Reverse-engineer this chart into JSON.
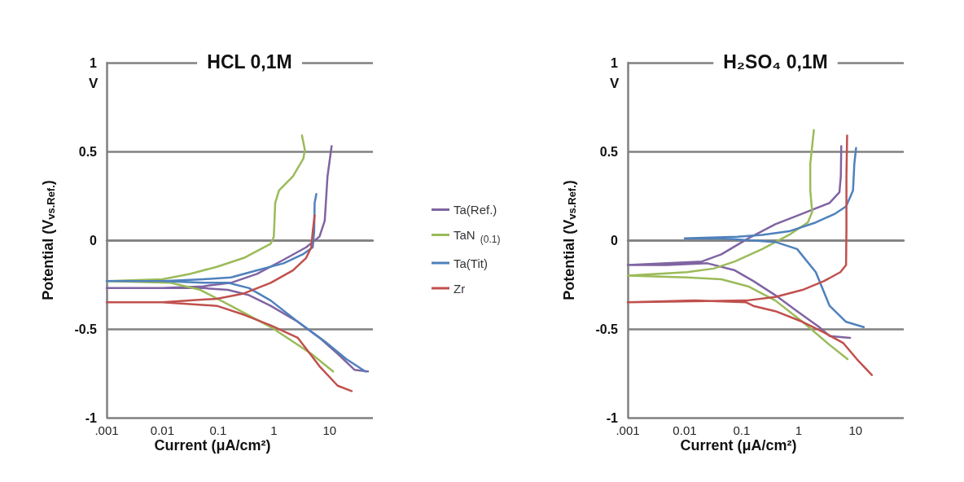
{
  "chart_data": [
    {
      "type": "line",
      "title": "HCL 0,1M",
      "xlabel": "Current (μA/cm²)",
      "ylabel": "Potential (V$_{vs.Ref.}$)",
      "annotations": [
        "V"
      ],
      "log": "x",
      "grid": "y",
      "legend": "right",
      "xlim": [
        0.001,
        60
      ],
      "xticks": [
        {
          "value": 0.001,
          "label": ".001"
        },
        0.01,
        0.1,
        1,
        10
      ],
      "ylim": [
        -1,
        1
      ],
      "yticks": [
        -1,
        -0.5,
        0,
        0.5,
        1
      ],
      "series": [
        {
          "name": "Ta(Ref.)",
          "color": "#8064a2",
          "x": [
            49,
            28,
            14,
            6.6,
            2.7,
            0.88,
            0.36,
            0.15,
            0.054,
            0.01,
            0.001,
            0.01,
            0.054,
            0.17,
            0.5,
            1.5,
            3.8,
            6.6,
            8.2,
            9.2,
            10.9
          ],
          "values": [
            -0.74,
            -0.73,
            -0.64,
            -0.55,
            -0.46,
            -0.37,
            -0.31,
            -0.28,
            -0.27,
            -0.27,
            -0.27,
            -0.27,
            -0.26,
            -0.24,
            -0.19,
            -0.11,
            -0.04,
            0.02,
            0.11,
            0.36,
            0.53
          ]
        },
        {
          "name": "TaN $_{(0.1)}$",
          "color": "#9bbb59",
          "x": [
            11.6,
            4.7,
            0.89,
            0.17,
            0.048,
            0.014,
            0.001,
            0.01,
            0.031,
            0.095,
            0.29,
            0.88,
            1.0,
            1.06,
            1.24,
            2.2,
            3.4,
            3.6,
            3.2
          ],
          "values": [
            -0.74,
            -0.64,
            -0.49,
            -0.37,
            -0.28,
            -0.24,
            -0.23,
            -0.22,
            -0.19,
            -0.15,
            -0.1,
            -0.02,
            0.02,
            0.21,
            0.28,
            0.36,
            0.46,
            0.51,
            0.59
          ]
        },
        {
          "name": "Ta(Tit)",
          "color": "#4f81bd",
          "x": [
            44,
            20,
            8.2,
            2.7,
            0.88,
            0.36,
            0.15,
            0.054,
            0.01,
            0.001,
            0.01,
            0.054,
            0.17,
            0.5,
            1.5,
            3.3,
            5.0,
            5.3,
            5.4,
            5.8
          ],
          "values": [
            -0.74,
            -0.67,
            -0.57,
            -0.46,
            -0.34,
            -0.27,
            -0.24,
            -0.24,
            -0.23,
            -0.23,
            -0.23,
            -0.22,
            -0.21,
            -0.17,
            -0.13,
            -0.08,
            -0.04,
            0.05,
            0.21,
            0.26
          ]
        },
        {
          "name": "Zr",
          "color": "#c0504d",
          "x": [
            25,
            14,
            6.6,
            2.7,
            0.88,
            0.29,
            0.095,
            0.031,
            0.01,
            0.001,
            0.01,
            0.031,
            0.095,
            0.29,
            0.88,
            2.2,
            3.8,
            4.7,
            5.0,
            5.4
          ],
          "values": [
            -0.85,
            -0.82,
            -0.71,
            -0.55,
            -0.48,
            -0.42,
            -0.37,
            -0.36,
            -0.35,
            -0.35,
            -0.35,
            -0.34,
            -0.33,
            -0.3,
            -0.24,
            -0.17,
            -0.1,
            -0.04,
            0.05,
            0.14
          ]
        }
      ]
    },
    {
      "type": "line",
      "title": "H₂SO₄ 0,1M",
      "xlabel": "Current (μA/cm²)",
      "ylabel": "Potential (V$_{vs.Ref.}$)",
      "annotations": [
        "V"
      ],
      "log": "x",
      "grid": "y",
      "xlim": [
        0.001,
        70
      ],
      "xticks": [
        {
          "value": 0.001,
          "label": ".001"
        },
        0.01,
        0.1,
        1,
        10
      ],
      "ylim": [
        -1,
        1
      ],
      "yticks": [
        -1,
        -0.5,
        0,
        0.5,
        1
      ],
      "series": [
        {
          "color": "#8064a2",
          "x": [
            8.0,
            3.5,
            2.3,
            0.94,
            0.39,
            0.16,
            0.076,
            0.025,
            0.0049,
            0.001,
            0.0049,
            0.02,
            0.044,
            0.13,
            0.39,
            1.17,
            3.5,
            5.2,
            5.5,
            5.6
          ],
          "values": [
            -0.55,
            -0.54,
            -0.49,
            -0.4,
            -0.31,
            -0.23,
            -0.17,
            -0.13,
            -0.14,
            -0.14,
            -0.13,
            -0.12,
            -0.08,
            0.01,
            0.09,
            0.15,
            0.21,
            0.27,
            0.36,
            0.53
          ]
        },
        {
          "color": "#9bbb59",
          "x": [
            7.2,
            3.5,
            1.17,
            0.39,
            0.13,
            0.044,
            0.011,
            0.001,
            0.011,
            0.032,
            0.076,
            0.23,
            0.68,
            1.45,
            1.73,
            1.6,
            1.6,
            1.85
          ],
          "values": [
            -0.67,
            -0.59,
            -0.46,
            -0.34,
            -0.26,
            -0.22,
            -0.21,
            -0.2,
            -0.18,
            -0.16,
            -0.12,
            -0.05,
            0.03,
            0.1,
            0.16,
            0.28,
            0.43,
            0.62
          ]
        },
        {
          "color": "#4f81bd",
          "x": [
            13.9,
            6.8,
            3.5,
            2.0,
            0.94,
            0.39,
            0.13,
            0.044,
            0.01,
            0.085,
            0.23,
            0.68,
            2.0,
            4.4,
            6.8,
            9.0,
            9.5,
            10.2
          ],
          "values": [
            -0.49,
            -0.46,
            -0.37,
            -0.18,
            -0.05,
            -0.01,
            0.0,
            0.01,
            0.01,
            0.02,
            0.03,
            0.05,
            0.1,
            0.15,
            0.19,
            0.28,
            0.43,
            0.52
          ]
        },
        {
          "color": "#c0504d",
          "x": [
            19.3,
            10.5,
            6.1,
            2.8,
            1.17,
            0.39,
            0.16,
            0.12,
            0.015,
            0.001,
            0.12,
            0.39,
            1.17,
            2.8,
            5.4,
            6.8,
            6.9,
            6.9,
            7.1
          ],
          "values": [
            -0.76,
            -0.67,
            -0.58,
            -0.52,
            -0.46,
            -0.4,
            -0.37,
            -0.35,
            -0.34,
            -0.35,
            -0.34,
            -0.32,
            -0.28,
            -0.23,
            -0.18,
            -0.14,
            0.06,
            0.36,
            0.59
          ]
        }
      ]
    }
  ]
}
